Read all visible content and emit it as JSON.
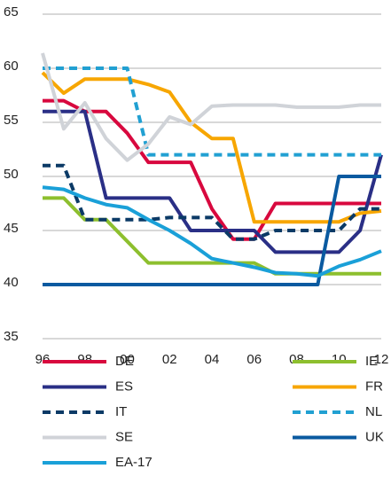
{
  "chart_data": {
    "type": "line",
    "x": [
      1996,
      1997,
      1998,
      1999,
      2000,
      2001,
      2002,
      2003,
      2004,
      2005,
      2006,
      2007,
      2008,
      2009,
      2010,
      2011,
      2012
    ],
    "xlim": [
      1996,
      2012
    ],
    "xticks": [
      {
        "value": 1996,
        "label": "96"
      },
      {
        "value": 1998,
        "label": "98"
      },
      {
        "value": 2000,
        "label": "00"
      },
      {
        "value": 2002,
        "label": "02"
      },
      {
        "value": 2004,
        "label": "04"
      },
      {
        "value": 2006,
        "label": "06"
      },
      {
        "value": 2008,
        "label": "08"
      },
      {
        "value": 2010,
        "label": "10"
      },
      {
        "value": 2012,
        "label": "12"
      }
    ],
    "ylim": [
      35,
      65
    ],
    "yticks": [
      35,
      40,
      45,
      50,
      55,
      60,
      65
    ],
    "grid": true,
    "series": [
      {
        "name": "DE",
        "color": "#d8083e",
        "dashed": false,
        "values": [
          57,
          57,
          56,
          56,
          54,
          51.3,
          51.3,
          51.3,
          47,
          44.2,
          44.2,
          47.5,
          47.5,
          47.5,
          47.5,
          47.5,
          47.5
        ]
      },
      {
        "name": "IE",
        "color": "#8dbf2e",
        "dashed": false,
        "values": [
          48,
          48,
          46,
          46,
          44,
          42,
          42,
          42,
          42,
          42,
          42,
          41,
          41,
          41,
          41,
          41,
          41
        ]
      },
      {
        "name": "ES",
        "color": "#2a2f86",
        "dashed": false,
        "values": [
          56,
          56,
          56,
          48,
          48,
          48,
          48,
          45,
          45,
          45,
          45,
          43,
          43,
          43,
          43,
          45,
          52
        ]
      },
      {
        "name": "FR",
        "color": "#f7a600",
        "dashed": false,
        "values": [
          59.6,
          57.7,
          59,
          59,
          59,
          58.5,
          57.8,
          55,
          53.5,
          53.5,
          45.8,
          45.8,
          45.8,
          45.8,
          45.8,
          46.6,
          46.8
        ]
      },
      {
        "name": "IT",
        "color": "#0b3a66",
        "dashed": true,
        "values": [
          51,
          51,
          46,
          46,
          46,
          46,
          46.2,
          46.2,
          46.2,
          44.2,
          44.2,
          45,
          45,
          45,
          45,
          47,
          47
        ]
      },
      {
        "name": "NL",
        "color": "#21a0d2",
        "dashed": true,
        "values": [
          60,
          60,
          60,
          60,
          60,
          52,
          52,
          52,
          52,
          52,
          52,
          52,
          52,
          52,
          52,
          52,
          52
        ]
      },
      {
        "name": "SE",
        "color": "#d0d3d8",
        "dashed": false,
        "values": [
          61.4,
          54.4,
          56.8,
          53.5,
          51.5,
          53,
          55.5,
          54.8,
          56.5,
          56.6,
          56.6,
          56.6,
          56.4,
          56.4,
          56.4,
          56.6,
          56.6
        ]
      },
      {
        "name": "UK",
        "color": "#0a5aa0",
        "dashed": false,
        "values": [
          40,
          40,
          40,
          40,
          40,
          40,
          40,
          40,
          40,
          40,
          40,
          40,
          40,
          40,
          50,
          50,
          50
        ]
      },
      {
        "name": "EA-17",
        "color": "#1aa0d8",
        "dashed": false,
        "values": [
          49,
          48.8,
          48,
          47.4,
          47.1,
          46,
          45,
          43.8,
          42.4,
          42,
          41.6,
          41.1,
          41,
          40.8,
          41.7,
          42.3,
          43.1
        ]
      }
    ]
  }
}
